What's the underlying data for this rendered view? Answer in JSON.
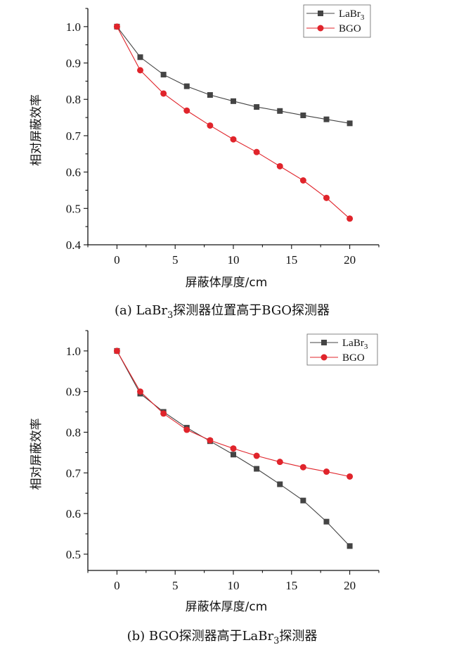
{
  "chart_data": [
    {
      "type": "line",
      "caption": {
        "prefix": "(a) LaBr",
        "sub": "3",
        "suffix": "探测器位置高于BGO探测器"
      },
      "xlabel": "屏蔽体厚度/cm",
      "ylabel": "相对屏蔽效率",
      "xlim": [
        -2.5,
        22.5
      ],
      "ylim": [
        0.4,
        1.05
      ],
      "xticks": [
        0,
        5,
        10,
        15,
        20
      ],
      "yticks": [
        0.4,
        0.5,
        0.6,
        0.7,
        0.8,
        0.9,
        1.0
      ],
      "x": [
        0,
        2,
        4,
        6,
        8,
        10,
        12,
        14,
        16,
        18,
        20
      ],
      "legend_position": "top-right",
      "series": [
        {
          "name": "LaBr",
          "name_sub": "3",
          "marker": "square",
          "color": "#444444",
          "values": [
            1.0,
            0.916,
            0.868,
            0.836,
            0.812,
            0.795,
            0.779,
            0.768,
            0.756,
            0.745,
            0.734
          ]
        },
        {
          "name": "BGO",
          "name_sub": "",
          "marker": "circle",
          "color": "#e0242b",
          "values": [
            1.0,
            0.88,
            0.816,
            0.769,
            0.728,
            0.69,
            0.655,
            0.616,
            0.577,
            0.529,
            0.472
          ]
        }
      ]
    },
    {
      "type": "line",
      "caption": {
        "prefix": "(b) BGO探测器高于LaBr",
        "sub": "3",
        "suffix": "探测器"
      },
      "xlabel": "屏蔽体厚度/cm",
      "ylabel": "相对屏蔽效率",
      "xlim": [
        -2.5,
        22.5
      ],
      "ylim": [
        0.46,
        1.05
      ],
      "xticks": [
        0,
        5,
        10,
        15,
        20
      ],
      "yticks": [
        0.5,
        0.6,
        0.7,
        0.8,
        0.9,
        1.0
      ],
      "x": [
        0,
        2,
        4,
        6,
        8,
        10,
        12,
        14,
        16,
        18,
        20
      ],
      "legend_position": "top-right",
      "series": [
        {
          "name": "LaBr",
          "name_sub": "3",
          "marker": "square",
          "color": "#444444",
          "values": [
            1.0,
            0.895,
            0.85,
            0.811,
            0.778,
            0.745,
            0.71,
            0.672,
            0.632,
            0.58,
            0.52
          ]
        },
        {
          "name": "BGO",
          "name_sub": "",
          "marker": "circle",
          "color": "#e0242b",
          "values": [
            1.0,
            0.9,
            0.846,
            0.806,
            0.78,
            0.76,
            0.742,
            0.727,
            0.714,
            0.703,
            0.691
          ]
        }
      ]
    }
  ]
}
